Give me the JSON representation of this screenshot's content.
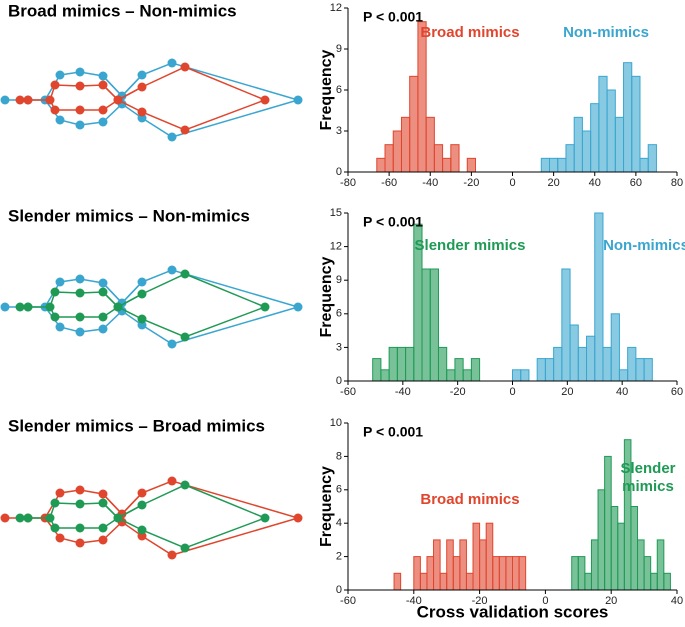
{
  "chart_data": [
    {
      "type": "histogram",
      "title": "Broad mimics – Non-mimics",
      "annotation": "P < 0.001",
      "ylabel": "Frequency",
      "xlim": [
        -80,
        80
      ],
      "xticks": [
        -80,
        -60,
        -40,
        -20,
        0,
        20,
        40,
        60,
        80
      ],
      "ylim": [
        0,
        12
      ],
      "yticks": [
        0,
        3,
        6,
        9,
        12
      ],
      "series": [
        {
          "name": "Broad mimics",
          "color": "#e0452d",
          "bins": [
            -66,
            -62,
            -58,
            -54,
            -50,
            -46,
            -42,
            -38,
            -34,
            -30,
            -26,
            -22,
            -18
          ],
          "values": [
            1,
            2,
            3,
            4,
            7,
            11,
            4,
            2,
            1,
            2,
            0,
            1
          ]
        },
        {
          "name": "Non-mimics",
          "color": "#3aa6d0",
          "bins": [
            14,
            18,
            22,
            26,
            30,
            34,
            38,
            42,
            46,
            50,
            54,
            58,
            62,
            66,
            70
          ],
          "values": [
            1,
            1,
            1,
            2,
            4,
            3,
            5,
            7,
            6,
            4,
            8,
            7,
            1,
            2
          ]
        }
      ]
    },
    {
      "type": "histogram",
      "title": "Slender mimics – Non-mimics",
      "annotation": "P < 0.001",
      "ylabel": "Frequency",
      "xlim": [
        -60,
        60
      ],
      "xticks": [
        -60,
        -40,
        -20,
        0,
        20,
        40,
        60
      ],
      "ylim": [
        0,
        15
      ],
      "yticks": [
        0,
        3,
        6,
        9,
        12,
        15
      ],
      "series": [
        {
          "name": "Slender mimics",
          "color": "#1f9a55",
          "bins": [
            -51,
            -48,
            -45,
            -42,
            -39,
            -36,
            -33,
            -30,
            -27,
            -24,
            -21,
            -18,
            -15,
            -12
          ],
          "values": [
            2,
            1,
            3,
            3,
            3,
            14,
            10,
            10,
            3,
            1,
            2,
            1,
            2
          ]
        },
        {
          "name": "Non-mimics",
          "color": "#3aa6d0",
          "bins": [
            0,
            3,
            6,
            9,
            12,
            15,
            18,
            21,
            24,
            27,
            30,
            33,
            36,
            39,
            42,
            45,
            48,
            51
          ],
          "values": [
            1,
            1,
            0,
            2,
            2,
            3,
            10,
            5,
            3,
            4,
            15,
            3,
            6,
            1,
            3,
            2,
            2
          ]
        }
      ]
    },
    {
      "type": "histogram",
      "title": "Slender mimics – Broad mimics",
      "annotation": "P < 0.001",
      "ylabel": "Frequency",
      "xlabel": "Cross validation scores",
      "xlim": [
        -60,
        40
      ],
      "xticks": [
        -60,
        -40,
        -20,
        0,
        20,
        40
      ],
      "ylim": [
        0,
        10
      ],
      "yticks": [
        0,
        2,
        4,
        6,
        8,
        10
      ],
      "series": [
        {
          "name": "Broad mimics",
          "color": "#e0452d",
          "bins": [
            -46,
            -44,
            -42,
            -40,
            -38,
            -36,
            -34,
            -32,
            -30,
            -28,
            -26,
            -24,
            -22,
            -20,
            -18,
            -16,
            -14,
            -12,
            -10,
            -8,
            -6
          ],
          "values": [
            1,
            0,
            0,
            2,
            1,
            2,
            3,
            1,
            3,
            2,
            3,
            1,
            4,
            3,
            4,
            2,
            2,
            2,
            2,
            2
          ]
        },
        {
          "name": "Slender mimics",
          "color": "#1f9a55",
          "bins": [
            8,
            10,
            12,
            14,
            16,
            18,
            20,
            22,
            24,
            26,
            28,
            30,
            32,
            34,
            36,
            38
          ],
          "values": [
            2,
            2,
            1,
            3,
            6,
            8,
            5,
            4,
            9,
            5,
            3,
            2,
            1,
            3,
            1
          ]
        }
      ]
    }
  ]
}
